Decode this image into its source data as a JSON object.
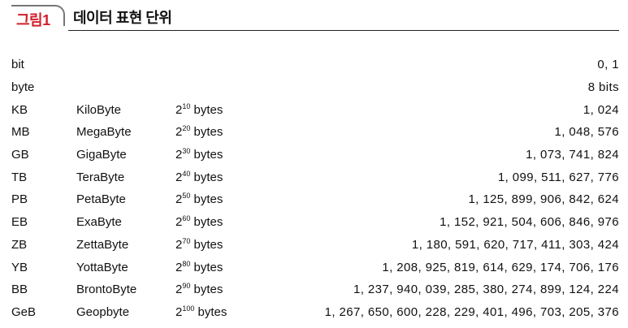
{
  "header": {
    "tag": "그림1",
    "title": "데이터 표현 단위"
  },
  "rows": [
    {
      "abbr": "bit",
      "name": "",
      "base": "",
      "exp": "",
      "unit": "",
      "value": "0, 1"
    },
    {
      "abbr": "byte",
      "name": "",
      "base": "",
      "exp": "",
      "unit": "",
      "value": "8 bits"
    },
    {
      "abbr": "KB",
      "name": "KiloByte",
      "base": "2",
      "exp": "10",
      "unit": " bytes",
      "value": "1, 024"
    },
    {
      "abbr": "MB",
      "name": "MegaByte",
      "base": "2",
      "exp": "20",
      "unit": " bytes",
      "value": "1, 048, 576"
    },
    {
      "abbr": "GB",
      "name": "GigaByte",
      "base": "2",
      "exp": "30",
      "unit": " bytes",
      "value": "1, 073, 741, 824"
    },
    {
      "abbr": "TB",
      "name": "TeraByte",
      "base": "2",
      "exp": "40",
      "unit": " bytes",
      "value": "1, 099, 511, 627, 776"
    },
    {
      "abbr": "PB",
      "name": "PetaByte",
      "base": "2",
      "exp": "50",
      "unit": " bytes",
      "value": "1, 125, 899, 906, 842, 624"
    },
    {
      "abbr": "EB",
      "name": "ExaByte",
      "base": "2",
      "exp": "60",
      "unit": " bytes",
      "value": "1, 152, 921, 504, 606, 846, 976"
    },
    {
      "abbr": "ZB",
      "name": "ZettaByte",
      "base": "2",
      "exp": "70",
      "unit": " bytes",
      "value": "1, 180, 591, 620, 717, 411, 303, 424"
    },
    {
      "abbr": "YB",
      "name": "YottaByte",
      "base": "2",
      "exp": "80",
      "unit": " bytes",
      "value": "1, 208, 925, 819, 614, 629, 174, 706, 176"
    },
    {
      "abbr": "BB",
      "name": "BrontoByte",
      "base": "2",
      "exp": "90",
      "unit": " bytes",
      "value": "1, 237, 940, 039, 285, 380, 274, 899, 124, 224"
    },
    {
      "abbr": "GeB",
      "name": "Geopbyte",
      "base": "2",
      "exp": "100",
      "unit": " bytes",
      "value": "1, 267, 650, 600, 228, 229, 401, 496, 703, 205, 376"
    }
  ]
}
